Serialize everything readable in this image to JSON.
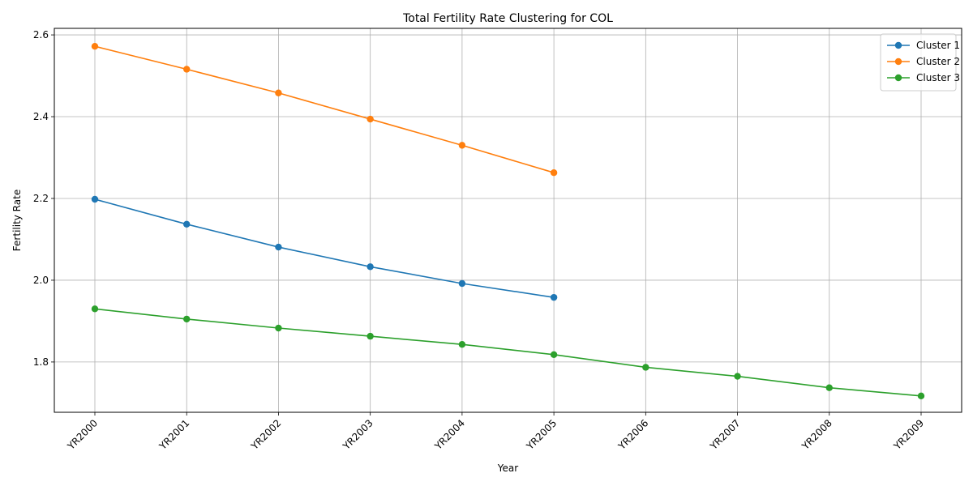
{
  "chart_data": {
    "type": "line",
    "title": "Total Fertility Rate Clustering for COL",
    "xlabel": "Year",
    "ylabel": "Fertility Rate",
    "categories": [
      "YR2000",
      "YR2001",
      "YR2002",
      "YR2003",
      "YR2004",
      "YR2005",
      "YR2006",
      "YR2007",
      "YR2008",
      "YR2009"
    ],
    "y_ticks": [
      "1.8",
      "2.0",
      "2.2",
      "2.4",
      "2.6"
    ],
    "ylim": [
      1.677,
      2.616
    ],
    "grid": true,
    "legend_position": "top-right",
    "series": [
      {
        "name": "Cluster 1",
        "color": "#1f77b4",
        "values": [
          2.198,
          2.137,
          2.081,
          2.033,
          1.992,
          1.958,
          null,
          null,
          null,
          null
        ]
      },
      {
        "name": "Cluster 2",
        "color": "#ff7f0e",
        "values": [
          2.572,
          2.516,
          2.458,
          2.394,
          2.33,
          2.263,
          null,
          null,
          null,
          null
        ]
      },
      {
        "name": "Cluster 3",
        "color": "#2ca02c",
        "values": [
          1.93,
          1.905,
          1.883,
          1.863,
          1.843,
          1.818,
          1.787,
          1.765,
          1.737,
          1.717
        ]
      }
    ]
  }
}
